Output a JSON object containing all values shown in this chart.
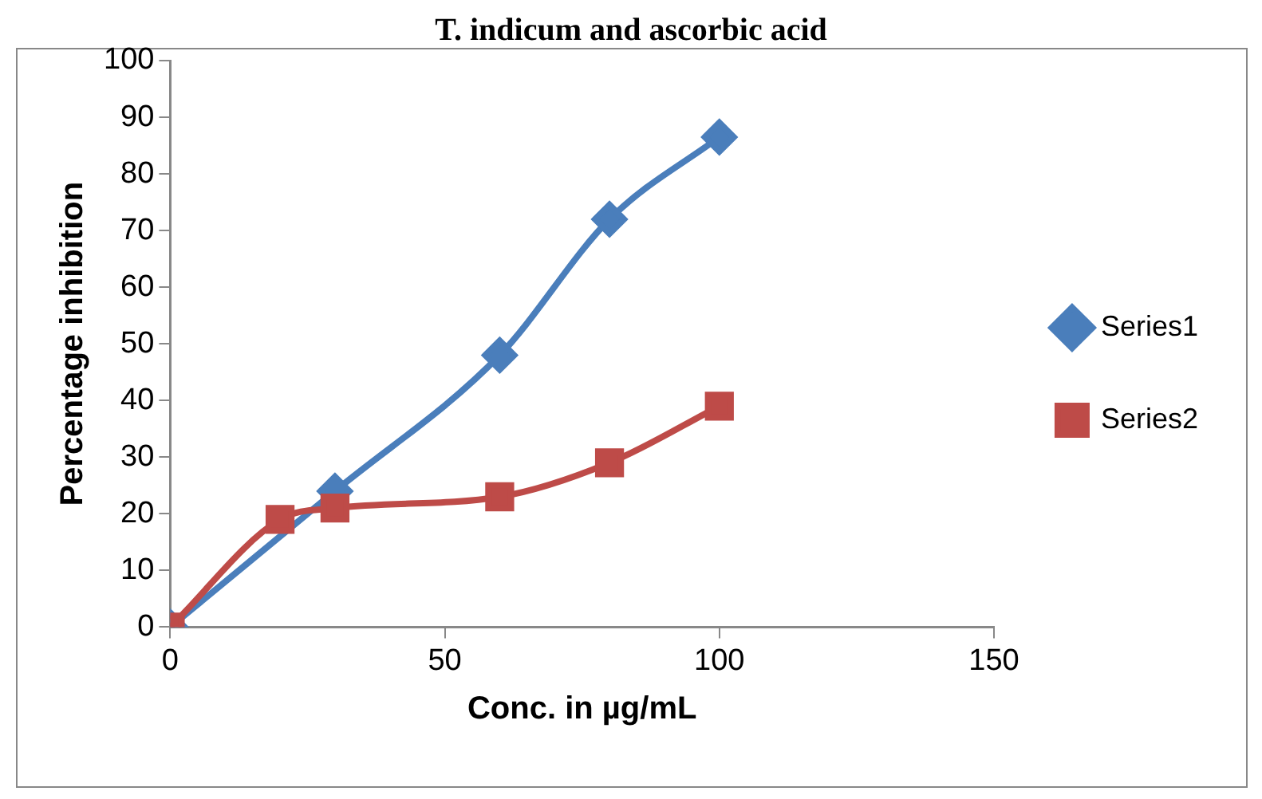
{
  "chart_data": {
    "type": "line",
    "title": "T. indicum and ascorbic acid",
    "xlabel": "Conc. in µg/mL",
    "ylabel": "Percentage inhibition",
    "xlim": [
      0,
      150
    ],
    "xticks": [
      0,
      50,
      100,
      150
    ],
    "ylim": [
      0,
      100
    ],
    "yticks": [
      0,
      10,
      20,
      30,
      40,
      50,
      60,
      70,
      80,
      90,
      100
    ],
    "grid": false,
    "legend": "right",
    "line_style": "solid",
    "series": [
      {
        "name": "Series1",
        "color": "#4a7ebb",
        "marker": "diamond",
        "x": [
          0,
          20,
          30,
          60,
          80,
          100
        ],
        "values": [
          0,
          null,
          24,
          48,
          72,
          86.5
        ]
      },
      {
        "name": "Series2",
        "color": "#be4b48",
        "marker": "square",
        "x": [
          0,
          20,
          30,
          60,
          80,
          100
        ],
        "values": [
          0,
          19,
          21,
          23,
          29,
          39
        ]
      }
    ]
  }
}
